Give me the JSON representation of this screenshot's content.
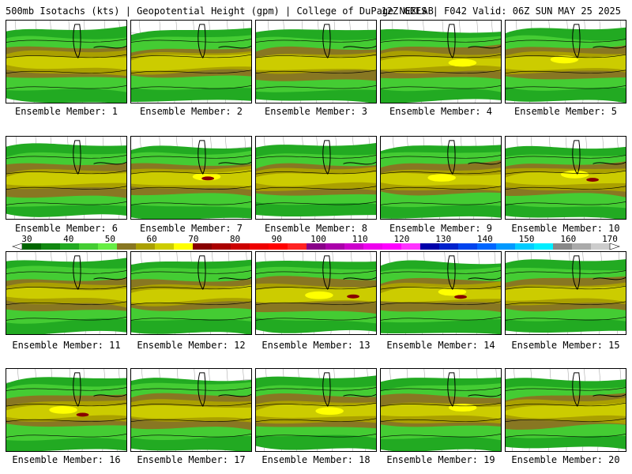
{
  "header": {
    "left": "500mb Isotachs (kts) | Geopotential Height (gpm) | College of DuPage NEXLAB",
    "right": "12Z GEFS | F042 Valid: 06Z SUN MAY 25 2025"
  },
  "members": [
    {
      "label": "Ensemble Member: 1",
      "max_level": 60
    },
    {
      "label": "Ensemble Member: 2",
      "max_level": 60
    },
    {
      "label": "Ensemble Member: 3",
      "max_level": 60
    },
    {
      "label": "Ensemble Member: 4",
      "max_level": 70
    },
    {
      "label": "Ensemble Member: 5",
      "max_level": 70
    },
    {
      "label": "Ensemble Member: 6",
      "max_level": 60
    },
    {
      "label": "Ensemble Member: 7",
      "max_level": 80
    },
    {
      "label": "Ensemble Member: 8",
      "max_level": 60
    },
    {
      "label": "Ensemble Member: 9",
      "max_level": 70
    },
    {
      "label": "Ensemble Member: 10",
      "max_level": 80
    },
    {
      "label": "Ensemble Member: 11",
      "max_level": 60
    },
    {
      "label": "Ensemble Member: 12",
      "max_level": 60
    },
    {
      "label": "Ensemble Member: 13",
      "max_level": 80
    },
    {
      "label": "Ensemble Member: 14",
      "max_level": 80
    },
    {
      "label": "Ensemble Member: 15",
      "max_level": 60
    },
    {
      "label": "Ensemble Member: 16",
      "max_level": 80
    },
    {
      "label": "Ensemble Member: 17",
      "max_level": 60
    },
    {
      "label": "Ensemble Member: 18",
      "max_level": 70
    },
    {
      "label": "Ensemble Member: 19",
      "max_level": 70
    },
    {
      "label": "Ensemble Member: 20",
      "max_level": 60
    }
  ],
  "legend": {
    "ticks": [
      "30",
      "40",
      "50",
      "60",
      "70",
      "80",
      "90",
      "100",
      "110",
      "120",
      "130",
      "140",
      "150",
      "160",
      "170"
    ],
    "colors": [
      "#006600",
      "#118811",
      "#22aa22",
      "#44cc33",
      "#66ee44",
      "#887722",
      "#aaa000",
      "#cccc00",
      "#ffff00",
      "#880000",
      "#aa0000",
      "#cc0000",
      "#ee0000",
      "#ff0000",
      "#ff2222",
      "#880088",
      "#aa00aa",
      "#cc00cc",
      "#ee00ee",
      "#ff00ff",
      "#ff33ff",
      "#0000aa",
      "#0022cc",
      "#0044ee",
      "#0066ff",
      "#0099ff",
      "#00ccff",
      "#00eeff",
      "#888888",
      "#aaaaaa",
      "#cccccc"
    ]
  }
}
